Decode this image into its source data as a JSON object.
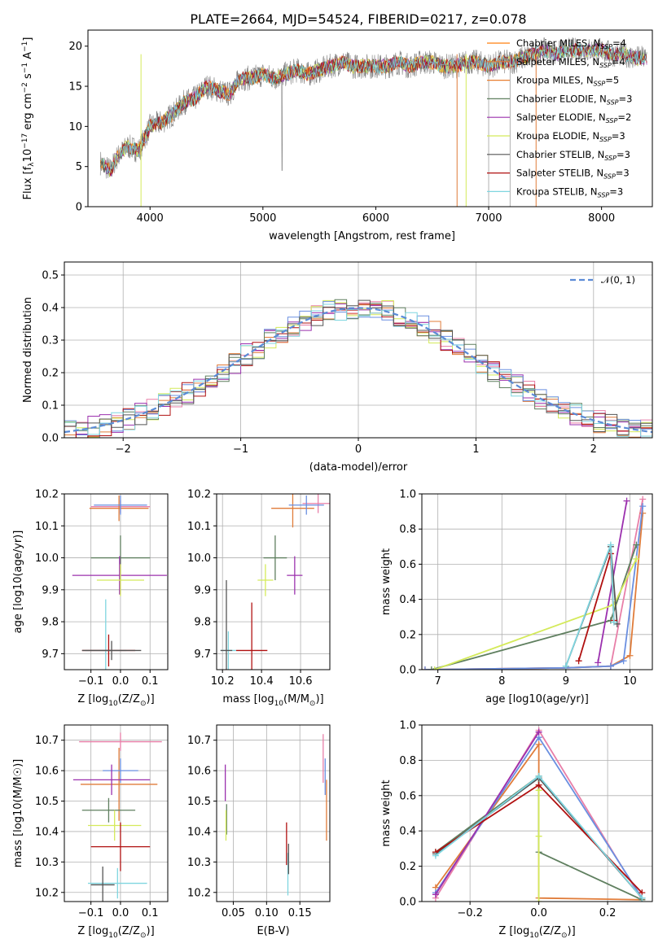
{
  "figure_title": "PLATE=2664, MJD=54524, FIBERID=0217, z=0.078",
  "colors": {
    "chabrier_miles": "#ff7f0e",
    "salpeter_miles": "#e07c3a",
    "kroupa_miles": "#e87d2f",
    "chabrier_elodie": "#5f7f5f",
    "salpeter_elodie": "#9b30ae",
    "kroupa_elodie": "#d4ea5a",
    "chabrier_stelib": "#555555",
    "salpeter_stelib": "#b01010",
    "kroupa_stelib": "#7fd6e0",
    "pink": "#e87fa8",
    "blue": "#6a8fe0",
    "gaussian": "#5b8bd6",
    "observed": "#808080"
  },
  "chart_data": [
    {
      "type": "line",
      "title": "PLATE=2664, MJD=54524, FIBERID=0217, z=0.078",
      "xlabel": "wavelength [Angstrom, rest frame]",
      "ylabel": "Flux [f",
      "ylabel_parts": {
        "a": "Flux [f",
        "b": "λ",
        "c": "10",
        "d": "−17",
        "e": " erg cm",
        "f": "−2",
        "g": " s",
        "h": "−1",
        "i": " A",
        "j": "−1",
        "k": "]"
      },
      "xlim": [
        3450,
        8450
      ],
      "ylim": [
        0,
        22
      ],
      "xticks": [
        4000,
        5000,
        6000,
        7000,
        8000
      ],
      "xticklabels": [
        "4000",
        "5000",
        "6000",
        "7000",
        "8000"
      ],
      "yticks": [
        0,
        5,
        10,
        15,
        20
      ],
      "yticklabels": [
        "0",
        "5",
        "10",
        "15",
        "20"
      ],
      "legend_position": "top-right",
      "spectrum_anchors": {
        "x": [
          3560,
          3650,
          3700,
          3800,
          3900,
          4000,
          4100,
          4200,
          4300,
          4400,
          4500,
          4600,
          4700,
          4800,
          4900,
          5000,
          5100,
          5200,
          5300,
          5400,
          5500,
          5600,
          5700,
          5800,
          5900,
          6000,
          6100,
          6200,
          6300,
          6400,
          6500,
          6600,
          6700,
          6800,
          6900,
          7000,
          7100,
          7200,
          7300,
          7400,
          7500,
          7600,
          7700,
          7800,
          7900,
          8000,
          8100,
          8200,
          8300,
          8400
        ],
        "y": [
          5.5,
          4.5,
          6.0,
          7.5,
          7.0,
          10.0,
          10.5,
          11.5,
          13.0,
          13.5,
          15.0,
          14.5,
          14.0,
          16.0,
          16.0,
          16.5,
          16.0,
          16.5,
          17.0,
          16.5,
          17.0,
          17.5,
          18.0,
          17.5,
          17.5,
          17.5,
          17.5,
          18.0,
          17.5,
          18.0,
          18.0,
          17.5,
          17.5,
          18.0,
          18.0,
          17.5,
          18.0,
          18.0,
          18.5,
          19.0,
          19.5,
          19.0,
          19.5,
          19.5,
          19.5,
          19.5,
          19.0,
          19.0,
          18.5,
          18.5
        ]
      },
      "series": [
        {
          "name": "Chabrier MILES, N_SSP=4",
          "label_main": "Chabrier MILES, N",
          "label_sub": "SSP",
          "label_tail": "=4",
          "color": "#ff7f0e"
        },
        {
          "name": "Salpeter MILES, N_SSP=4",
          "label_main": "Salpeter MILES, N",
          "label_sub": "SSP",
          "label_tail": "=4",
          "color": "#e07c3a"
        },
        {
          "name": "Kroupa MILES, N_SSP=5",
          "label_main": "Kroupa MILES, N",
          "label_sub": "SSP",
          "label_tail": "=5",
          "color": "#e87d2f"
        },
        {
          "name": "Chabrier ELODIE, N_SSP=3",
          "label_main": "Chabrier ELODIE, N",
          "label_sub": "SSP",
          "label_tail": "=3",
          "color": "#5f7f5f"
        },
        {
          "name": "Salpeter ELODIE, N_SSP=2",
          "label_main": "Salpeter ELODIE, N",
          "label_sub": "SSP",
          "label_tail": "=2",
          "color": "#9b30ae"
        },
        {
          "name": "Kroupa ELODIE, N_SSP=3",
          "label_main": "Kroupa ELODIE, N",
          "label_sub": "SSP",
          "label_tail": "=3",
          "color": "#d4ea5a"
        },
        {
          "name": "Chabrier STELIB, N_SSP=3",
          "label_main": "Chabrier STELIB, N",
          "label_sub": "SSP",
          "label_tail": "=3",
          "color": "#555555"
        },
        {
          "name": "Salpeter STELIB, N_SSP=3",
          "label_main": "Salpeter STELIB, N",
          "label_sub": "SSP",
          "label_tail": "=3",
          "color": "#b01010"
        },
        {
          "name": "Kroupa STELIB, N_SSP=3",
          "label_main": "Kroupa STELIB, N",
          "label_sub": "SSP",
          "label_tail": "=3",
          "color": "#7fd6e0"
        }
      ]
    },
    {
      "type": "histogram",
      "xlabel": "(data-model)/error",
      "ylabel": "Normed distribution",
      "xlim": [
        -2.5,
        2.5
      ],
      "ylim": [
        0,
        0.54
      ],
      "xticks": [
        -2,
        -1,
        0,
        1,
        2
      ],
      "xticklabels": [
        "−2",
        "−1",
        "0",
        "1",
        "2"
      ],
      "yticks": [
        0,
        0.1,
        0.2,
        0.3,
        0.4,
        0.5
      ],
      "yticklabels": [
        "0.0",
        "0.1",
        "0.2",
        "0.3",
        "0.4",
        "0.5"
      ],
      "bin_width": 0.1,
      "bin_start": -2.6,
      "reference": {
        "name": "𝒩(0, 1)",
        "style": "dashed",
        "color": "#5b8bd6"
      },
      "legend_position": "top-right",
      "hist_colors": [
        "#e87fa8",
        "#e07c3a",
        "#d4ea5a",
        "#9b30ae",
        "#6a8fe0",
        "#b01010",
        "#5f7f5f",
        "#7fd6e0",
        "#555555"
      ]
    },
    {
      "type": "errorbar",
      "xlabel_main": "Z [log",
      "xlabel_sub": "10",
      "xlabel_tail": "(Z/Z",
      "ylabel": "age  [log10(age/yr)]",
      "xlim": [
        -0.19,
        0.16
      ],
      "ylim": [
        9.65,
        10.2
      ],
      "xticks": [
        -0.1,
        0.0,
        0.1
      ],
      "xticklabels": [
        "−0.1",
        "0.0",
        "0.1"
      ],
      "yticks": [
        9.7,
        9.8,
        9.9,
        10.0,
        10.1,
        10.2
      ],
      "yticklabels": [
        "9.7",
        "9.8",
        "9.9",
        "10.0",
        "10.1",
        "10.2"
      ],
      "points": [
        {
          "x": 0.0,
          "y": 10.16,
          "xerr": 0.1,
          "yerr": 0.02,
          "color": "#e87fa8"
        },
        {
          "x": -0.005,
          "y": 10.155,
          "xerr": 0.1,
          "yerr": 0.04,
          "color": "#e07c3a"
        },
        {
          "x": 0.0,
          "y": 10.165,
          "xerr": 0.09,
          "yerr": 0.03,
          "color": "#6a8fe0"
        },
        {
          "x": 0.0,
          "y": 10.0,
          "xerr": 0.1,
          "yerr": 0.07,
          "color": "#5f7f5f"
        },
        {
          "x": -0.003,
          "y": 9.945,
          "xerr": 0.16,
          "yerr": 0.06,
          "color": "#9b30ae"
        },
        {
          "x": 0.0,
          "y": 9.93,
          "xerr": 0.08,
          "yerr": 0.05,
          "color": "#d4ea5a"
        },
        {
          "x": -0.05,
          "y": 9.71,
          "xerr": 0.07,
          "yerr": 0.16,
          "color": "#7fd6e0"
        },
        {
          "x": -0.04,
          "y": 9.71,
          "xerr": 0.09,
          "yerr": 0.05,
          "color": "#b01010"
        },
        {
          "x": -0.03,
          "y": 9.71,
          "xerr": 0.1,
          "yerr": 0.03,
          "color": "#555555"
        }
      ]
    },
    {
      "type": "errorbar",
      "xlabel_main": "mass [log",
      "xlabel_sub": "10",
      "xlabel_tail": "(M/M",
      "xlim": [
        10.17,
        10.75
      ],
      "ylim": [
        9.65,
        10.2
      ],
      "xticks": [
        10.2,
        10.4,
        10.6
      ],
      "xticklabels": [
        "10.2",
        "10.4",
        "10.6"
      ],
      "yticks": [
        9.7,
        9.8,
        9.9,
        10.0,
        10.1,
        10.2
      ],
      "yticklabels": [
        "9.7",
        "9.8",
        "9.9",
        "10.0",
        "10.1",
        "10.2"
      ],
      "points": [
        {
          "x": 10.69,
          "y": 10.17,
          "xerr": 0.08,
          "yerr": 0.03,
          "color": "#e87fa8"
        },
        {
          "x": 10.56,
          "y": 10.155,
          "xerr": 0.11,
          "yerr": 0.06,
          "color": "#e07c3a"
        },
        {
          "x": 10.63,
          "y": 10.165,
          "xerr": 0.09,
          "yerr": 0.03,
          "color": "#6a8fe0"
        },
        {
          "x": 10.47,
          "y": 10.0,
          "xerr": 0.06,
          "yerr": 0.07,
          "color": "#5f7f5f"
        },
        {
          "x": 10.57,
          "y": 9.945,
          "xerr": 0.04,
          "yerr": 0.06,
          "color": "#9b30ae"
        },
        {
          "x": 10.42,
          "y": 9.93,
          "xerr": 0.04,
          "yerr": 0.05,
          "color": "#d4ea5a"
        },
        {
          "x": 10.23,
          "y": 9.71,
          "xerr": 0.04,
          "yerr": 0.06,
          "color": "#7fd6e0"
        },
        {
          "x": 10.35,
          "y": 9.71,
          "xerr": 0.08,
          "yerr": 0.15,
          "color": "#b01010"
        },
        {
          "x": 10.22,
          "y": 9.71,
          "xerr": 0.03,
          "yerr": 0.22,
          "color": "#555555"
        }
      ]
    },
    {
      "type": "line",
      "xlabel": "age  [log10(age/yr)]",
      "ylabel": "mass weight",
      "xlim": [
        6.75,
        10.35
      ],
      "ylim": [
        0,
        1
      ],
      "xticks": [
        7,
        8,
        9,
        10
      ],
      "xticklabels": [
        "7",
        "8",
        "9",
        "10"
      ],
      "yticks": [
        0,
        0.2,
        0.4,
        0.6,
        0.8,
        1.0
      ],
      "yticklabels": [
        "0.0",
        "0.2",
        "0.4",
        "0.6",
        "0.8",
        "1.0"
      ],
      "series": [
        {
          "color": "#e87fa8",
          "x": [
            6.8,
            9.0,
            9.7,
            10.2
          ],
          "y": [
            0.0,
            0.01,
            0.02,
            0.97
          ]
        },
        {
          "color": "#e07c3a",
          "x": [
            6.8,
            9.0,
            9.7,
            10.0,
            10.2
          ],
          "y": [
            0.0,
            0.01,
            0.02,
            0.08,
            0.89
          ]
        },
        {
          "color": "#6a8fe0",
          "x": [
            6.8,
            9.0,
            9.7,
            9.9,
            10.2
          ],
          "y": [
            0.0,
            0.01,
            0.02,
            0.05,
            0.93
          ]
        },
        {
          "color": "#5f7f5f",
          "x": [
            6.9,
            9.7,
            10.1
          ],
          "y": [
            0.0,
            0.28,
            0.71
          ]
        },
        {
          "color": "#9b30ae",
          "x": [
            9.5,
            9.95
          ],
          "y": [
            0.04,
            0.96
          ]
        },
        {
          "color": "#d4ea5a",
          "x": [
            6.95,
            9.75,
            10.1
          ],
          "y": [
            0.0,
            0.37,
            0.63
          ]
        },
        {
          "color": "#555555",
          "x": [
            9.0,
            9.7,
            9.8
          ],
          "y": [
            0.02,
            0.7,
            0.26
          ]
        },
        {
          "color": "#b01010",
          "x": [
            9.2,
            9.7,
            9.75
          ],
          "y": [
            0.05,
            0.66,
            0.28
          ]
        },
        {
          "color": "#7fd6e0",
          "x": [
            9.0,
            9.7,
            9.75
          ],
          "y": [
            0.02,
            0.71,
            0.27
          ]
        }
      ]
    },
    {
      "type": "errorbar",
      "xlabel_main": "Z [log",
      "xlabel_sub": "10",
      "xlabel_tail": "(Z/Z",
      "ylabel": "mass [log10(M/M☉)]",
      "xlim": [
        -0.19,
        0.16
      ],
      "ylim": [
        10.17,
        10.75
      ],
      "xticks": [
        -0.1,
        0.0,
        0.1
      ],
      "xticklabels": [
        "−0.1",
        "0.0",
        "0.1"
      ],
      "yticks": [
        10.2,
        10.3,
        10.4,
        10.5,
        10.6,
        10.7
      ],
      "yticklabels": [
        "10.2",
        "10.3",
        "10.4",
        "10.5",
        "10.6",
        "10.7"
      ],
      "points": [
        {
          "x": 0.0,
          "y": 10.695,
          "xerr": 0.14,
          "yerr": 0.03,
          "color": "#e87fa8"
        },
        {
          "x": -0.005,
          "y": 10.555,
          "xerr": 0.13,
          "yerr": 0.12,
          "color": "#e07c3a"
        },
        {
          "x": 0.0,
          "y": 10.6,
          "xerr": 0.06,
          "yerr": 0.04,
          "color": "#6a8fe0"
        },
        {
          "x": -0.04,
          "y": 10.47,
          "xerr": 0.09,
          "yerr": 0.04,
          "color": "#5f7f5f"
        },
        {
          "x": -0.03,
          "y": 10.57,
          "xerr": 0.13,
          "yerr": 0.05,
          "color": "#9b30ae"
        },
        {
          "x": -0.02,
          "y": 10.42,
          "xerr": 0.09,
          "yerr": 0.05,
          "color": "#d4ea5a"
        },
        {
          "x": -0.01,
          "y": 10.23,
          "xerr": 0.1,
          "yerr": 0.05,
          "color": "#7fd6e0"
        },
        {
          "x": 0.0,
          "y": 10.35,
          "xerr": 0.1,
          "yerr": 0.08,
          "color": "#b01010"
        },
        {
          "x": -0.06,
          "y": 10.225,
          "xerr": 0.04,
          "yerr": 0.06,
          "color": "#555555"
        }
      ]
    },
    {
      "type": "errorbar",
      "xlabel": "E(B-V)",
      "xlim": [
        0.025,
        0.195
      ],
      "ylim": [
        10.17,
        10.75
      ],
      "xticks": [
        0.05,
        0.1,
        0.15
      ],
      "xticklabels": [
        "0.05",
        "0.10",
        "0.15"
      ],
      "yticks": [
        10.2,
        10.3,
        10.4,
        10.5,
        10.6,
        10.7
      ],
      "yticklabels": [
        "10.2",
        "10.3",
        "10.4",
        "10.5",
        "10.6",
        "10.7"
      ],
      "points": [
        {
          "x": 0.185,
          "y": 10.64,
          "xerr": 0.0,
          "yerr": 0.08,
          "color": "#e87fa8"
        },
        {
          "x": 0.19,
          "y": 10.47,
          "xerr": 0.0,
          "yerr": 0.1,
          "color": "#e07c3a"
        },
        {
          "x": 0.188,
          "y": 10.58,
          "xerr": 0.0,
          "yerr": 0.06,
          "color": "#6a8fe0"
        },
        {
          "x": 0.04,
          "y": 10.44,
          "xerr": 0.0,
          "yerr": 0.05,
          "color": "#5f7f5f"
        },
        {
          "x": 0.038,
          "y": 10.56,
          "xerr": 0.0,
          "yerr": 0.06,
          "color": "#9b30ae"
        },
        {
          "x": 0.039,
          "y": 10.42,
          "xerr": 0.0,
          "yerr": 0.05,
          "color": "#d4ea5a"
        },
        {
          "x": 0.132,
          "y": 10.26,
          "xerr": 0.0,
          "yerr": 0.07,
          "color": "#7fd6e0"
        },
        {
          "x": 0.13,
          "y": 10.36,
          "xerr": 0.0,
          "yerr": 0.07,
          "color": "#b01010"
        },
        {
          "x": 0.133,
          "y": 10.31,
          "xerr": 0.0,
          "yerr": 0.05,
          "color": "#555555"
        }
      ]
    },
    {
      "type": "line",
      "xlabel_main": "Z [log",
      "xlabel_sub": "10",
      "xlabel_tail": "(Z/Z",
      "ylabel": "mass weight",
      "xlim": [
        -0.34,
        0.33
      ],
      "ylim": [
        0,
        1
      ],
      "xticks": [
        -0.2,
        0.0,
        0.2
      ],
      "xticklabels": [
        "−0.2",
        "0.0",
        "0.2"
      ],
      "yticks": [
        0,
        0.2,
        0.4,
        0.6,
        0.8,
        1.0
      ],
      "yticklabels": [
        "0.0",
        "0.2",
        "0.4",
        "0.6",
        "0.8",
        "1.0"
      ],
      "series": [
        {
          "color": "#e87fa8",
          "x": [
            -0.3,
            0.0,
            0.3
          ],
          "y": [
            0.02,
            0.97,
            0.01
          ]
        },
        {
          "color": "#e07c3a",
          "x": [
            -0.3,
            0.0,
            0.0,
            0.3
          ],
          "y": [
            0.08,
            0.89,
            0.02,
            0.01
          ]
        },
        {
          "color": "#6a8fe0",
          "x": [
            -0.3,
            0.0,
            0.3
          ],
          "y": [
            0.05,
            0.93,
            0.02
          ]
        },
        {
          "color": "#5f7f5f",
          "x": [
            -0.3,
            0.0,
            0.0,
            0.3
          ],
          "y": [
            0.28,
            0.71,
            0.28,
            0.01
          ]
        },
        {
          "color": "#9b30ae",
          "x": [
            -0.3,
            0.0
          ],
          "y": [
            0.04,
            0.96
          ]
        },
        {
          "color": "#d4ea5a",
          "x": [
            0.0,
            0.0,
            0.0
          ],
          "y": [
            0.0,
            0.63,
            0.37
          ]
        },
        {
          "color": "#555555",
          "x": [
            -0.3,
            0.0,
            0.3
          ],
          "y": [
            0.27,
            0.7,
            0.02
          ]
        },
        {
          "color": "#b01010",
          "x": [
            -0.3,
            0.0,
            0.3
          ],
          "y": [
            0.28,
            0.66,
            0.05
          ]
        },
        {
          "color": "#7fd6e0",
          "x": [
            -0.3,
            0.0,
            0.3
          ],
          "y": [
            0.26,
            0.71,
            0.02
          ]
        }
      ]
    }
  ]
}
